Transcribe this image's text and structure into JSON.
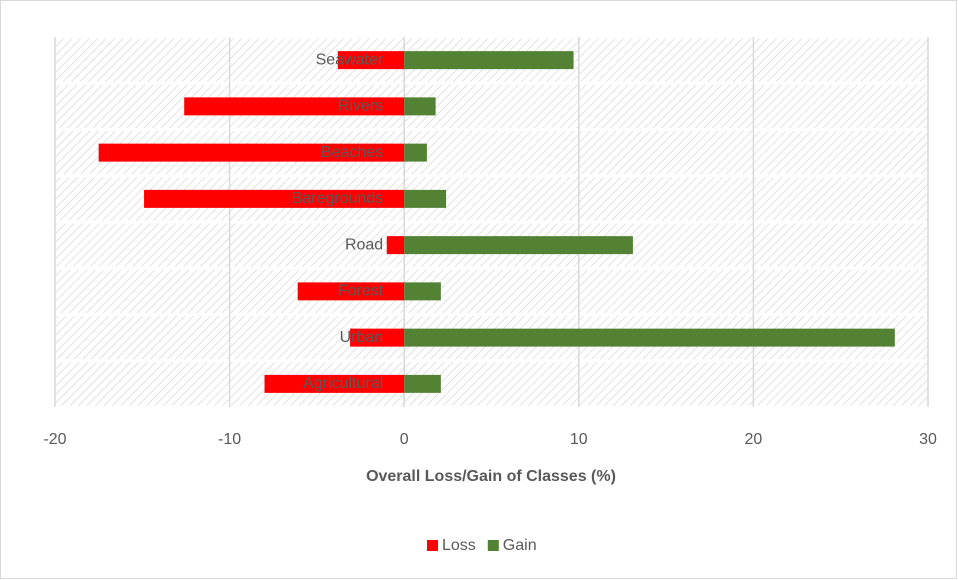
{
  "chart_data": {
    "type": "bar",
    "orientation": "horizontal",
    "categories": [
      "Seawater",
      "Rivers",
      "Beaches",
      "Baregrounds",
      "Road",
      "Forest",
      "Urban",
      "Agricultural"
    ],
    "series": [
      {
        "name": "Loss",
        "color": "#ff0000",
        "values": [
          -3.8,
          -12.6,
          -17.5,
          -14.9,
          -1.0,
          -6.1,
          -3.1,
          -8.0
        ]
      },
      {
        "name": "Gain",
        "color": "#548235",
        "values": [
          9.7,
          1.8,
          1.3,
          2.4,
          13.1,
          2.1,
          28.1,
          2.1
        ]
      }
    ],
    "xlabel": "Overall Loss/Gain of Classes (%)",
    "xlim": [
      -20,
      30
    ],
    "xticks": [
      -20,
      -10,
      0,
      10,
      20,
      30
    ],
    "grid": true,
    "legend": "bottom"
  }
}
